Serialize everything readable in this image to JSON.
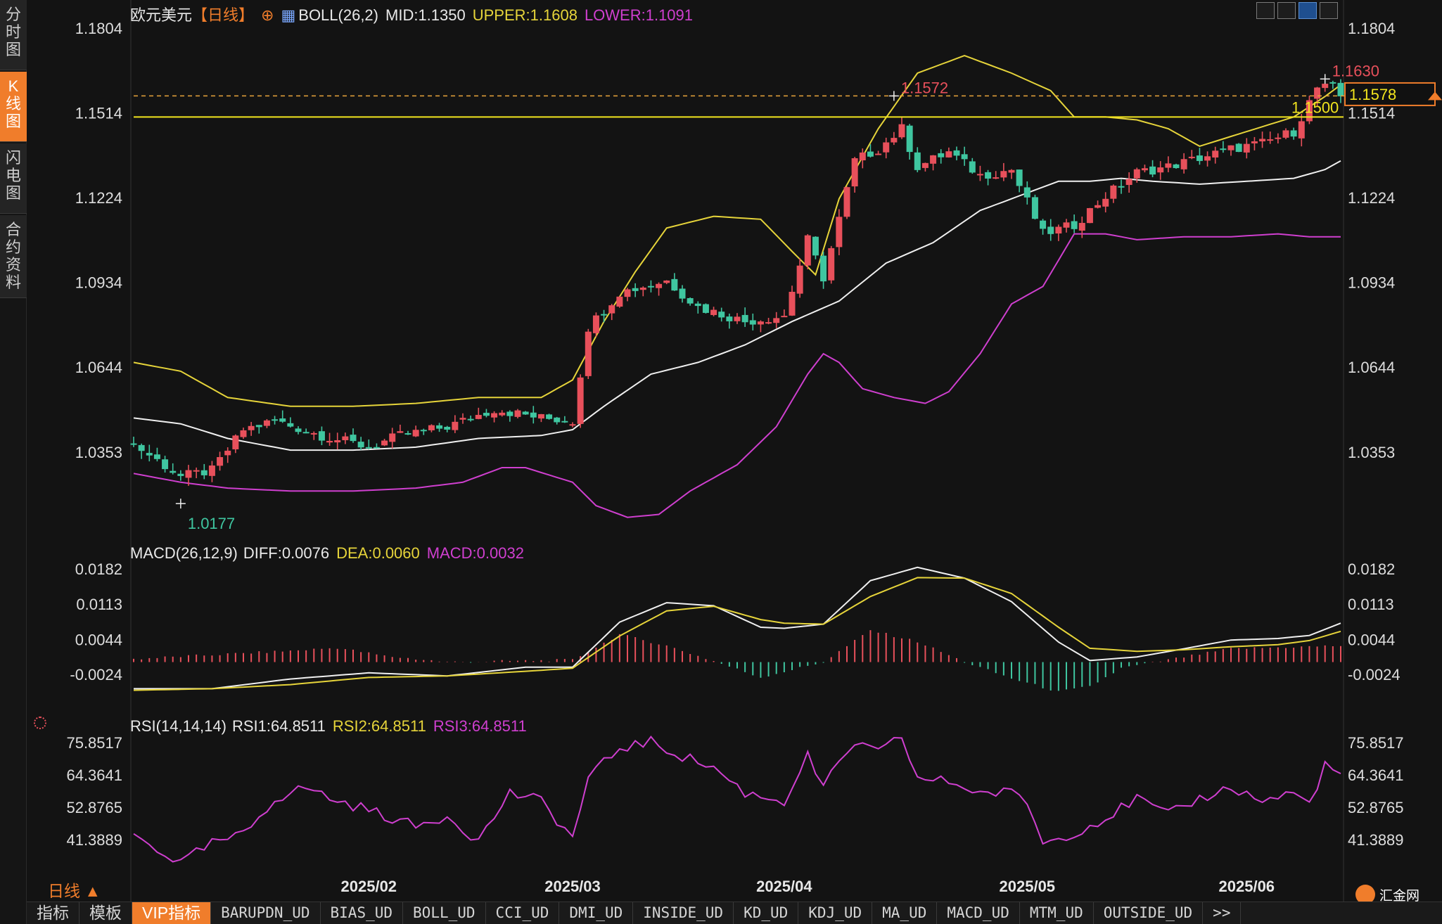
{
  "side_tabs": [
    {
      "label": "分\n时\n图",
      "active": false
    },
    {
      "label": "K\n线\n图",
      "active": true
    },
    {
      "label": "闪\n电\n图",
      "active": false
    },
    {
      "label": "合\n约\n资\n料",
      "active": false
    }
  ],
  "header": {
    "symbol": "欧元美元",
    "period_tag": "【日线】",
    "boll": "BOLL(26,2)",
    "mid": "MID:1.1350",
    "upper": "UPPER:1.1608",
    "lower": "LOWER:1.1091"
  },
  "macd_header": {
    "name": "MACD(26,12,9)",
    "diff": "DIFF:0.0076",
    "dea": "DEA:0.0060",
    "macd": "MACD:0.0032"
  },
  "rsi_header": {
    "name": "RSI(14,14,14)",
    "rsi1": "RSI1:64.8511",
    "rsi2": "RSI2:64.8511",
    "rsi3": "RSI3:64.8511"
  },
  "period_label": "日线 ▲",
  "logo_text": "汇金网",
  "bottom_tabs": [
    "指标",
    "模板",
    "VIP指标",
    "BARUPDN_UD",
    "BIAS_UD",
    "BOLL_UD",
    "CCI_UD",
    "DMI_UD",
    "INSIDE_UD",
    "KD_UD",
    "KDJ_UD",
    "MA_UD",
    "MACD_UD",
    "MTM_UD",
    "OUTSIDE_UD",
    ">>"
  ],
  "colors": {
    "up": "#e8505b",
    "down": "#3fc6a0",
    "upper": "#e6d43a",
    "mid": "#f0f0f0",
    "lower": "#cf3fcf",
    "price_line": "#f2e41e",
    "dashed": "#e9a43a"
  },
  "chart_data": [
    {
      "type": "candlestick",
      "title": "欧元美元 日线",
      "y_ticks": [
        "1.1804",
        "1.1514",
        "1.1224",
        "1.0934",
        "1.0644",
        "1.0353"
      ],
      "ylim": [
        1.008,
        1.193
      ],
      "x_tick_labels": [
        "2025/02",
        "2025/03",
        "2025/04",
        "2025/05",
        "2025/06"
      ],
      "x_tick_index": [
        30,
        56,
        83,
        114,
        142
      ],
      "annotations": [
        {
          "text": "1.0177",
          "index": 6,
          "value": 1.0177,
          "kind": "low"
        },
        {
          "text": "1.1572",
          "index": 97,
          "value": 1.1572,
          "kind": "high"
        },
        {
          "text": "1.1630",
          "index": 152,
          "value": 1.163,
          "kind": "high"
        }
      ],
      "horizontal_line": {
        "value": 1.15,
        "label": "1.1500"
      },
      "dashed_line": {
        "value": 1.1572
      },
      "current_price": {
        "value": 1.1578,
        "label": "1.1578"
      },
      "close_path": [
        [
          0,
          1.038
        ],
        [
          6,
          1.027
        ],
        [
          10,
          1.029
        ],
        [
          14,
          1.043
        ],
        [
          18,
          1.046
        ],
        [
          24,
          1.041
        ],
        [
          30,
          1.037
        ],
        [
          34,
          1.041
        ],
        [
          40,
          1.044
        ],
        [
          46,
          1.05
        ],
        [
          52,
          1.047
        ],
        [
          56,
          1.046
        ],
        [
          58,
          1.078
        ],
        [
          62,
          1.09
        ],
        [
          68,
          1.094
        ],
        [
          72,
          1.085
        ],
        [
          78,
          1.08
        ],
        [
          83,
          1.082
        ],
        [
          86,
          1.108
        ],
        [
          88,
          1.095
        ],
        [
          92,
          1.135
        ],
        [
          95,
          1.139
        ],
        [
          98,
          1.146
        ],
        [
          100,
          1.133
        ],
        [
          104,
          1.138
        ],
        [
          108,
          1.13
        ],
        [
          112,
          1.132
        ],
        [
          116,
          1.11
        ],
        [
          120,
          1.113
        ],
        [
          124,
          1.123
        ],
        [
          128,
          1.131
        ],
        [
          132,
          1.133
        ],
        [
          136,
          1.136
        ],
        [
          140,
          1.139
        ],
        [
          144,
          1.141
        ],
        [
          148,
          1.145
        ],
        [
          151,
          1.16
        ],
        [
          153,
          1.16
        ],
        [
          154,
          1.157
        ]
      ],
      "boll_upper": [
        [
          0,
          1.066
        ],
        [
          6,
          1.063
        ],
        [
          12,
          1.054
        ],
        [
          20,
          1.051
        ],
        [
          28,
          1.051
        ],
        [
          36,
          1.052
        ],
        [
          44,
          1.054
        ],
        [
          52,
          1.054
        ],
        [
          56,
          1.06
        ],
        [
          60,
          1.08
        ],
        [
          64,
          1.097
        ],
        [
          68,
          1.112
        ],
        [
          74,
          1.116
        ],
        [
          80,
          1.115
        ],
        [
          84,
          1.104
        ],
        [
          87,
          1.096
        ],
        [
          90,
          1.122
        ],
        [
          95,
          1.146
        ],
        [
          100,
          1.165
        ],
        [
          106,
          1.171
        ],
        [
          112,
          1.165
        ],
        [
          117,
          1.159
        ],
        [
          120,
          1.15
        ],
        [
          124,
          1.15
        ],
        [
          128,
          1.149
        ],
        [
          132,
          1.146
        ],
        [
          136,
          1.14
        ],
        [
          142,
          1.145
        ],
        [
          148,
          1.15
        ],
        [
          152,
          1.157
        ],
        [
          154,
          1.161
        ]
      ],
      "boll_mid": [
        [
          0,
          1.047
        ],
        [
          6,
          1.045
        ],
        [
          12,
          1.04
        ],
        [
          20,
          1.036
        ],
        [
          28,
          1.036
        ],
        [
          36,
          1.037
        ],
        [
          44,
          1.04
        ],
        [
          52,
          1.041
        ],
        [
          56,
          1.043
        ],
        [
          60,
          1.051
        ],
        [
          66,
          1.062
        ],
        [
          72,
          1.066
        ],
        [
          78,
          1.072
        ],
        [
          84,
          1.08
        ],
        [
          90,
          1.087
        ],
        [
          96,
          1.1
        ],
        [
          102,
          1.107
        ],
        [
          108,
          1.118
        ],
        [
          114,
          1.124
        ],
        [
          118,
          1.128
        ],
        [
          122,
          1.128
        ],
        [
          126,
          1.129
        ],
        [
          130,
          1.128
        ],
        [
          136,
          1.127
        ],
        [
          142,
          1.128
        ],
        [
          148,
          1.129
        ],
        [
          152,
          1.132
        ],
        [
          154,
          1.135
        ]
      ],
      "boll_lower": [
        [
          0,
          1.028
        ],
        [
          6,
          1.025
        ],
        [
          12,
          1.023
        ],
        [
          20,
          1.022
        ],
        [
          28,
          1.022
        ],
        [
          36,
          1.023
        ],
        [
          42,
          1.025
        ],
        [
          47,
          1.03
        ],
        [
          50,
          1.03
        ],
        [
          56,
          1.025
        ],
        [
          59,
          1.017
        ],
        [
          63,
          1.013
        ],
        [
          67,
          1.014
        ],
        [
          71,
          1.022
        ],
        [
          77,
          1.031
        ],
        [
          82,
          1.044
        ],
        [
          86,
          1.062
        ],
        [
          88,
          1.069
        ],
        [
          90,
          1.066
        ],
        [
          93,
          1.057
        ],
        [
          97,
          1.054
        ],
        [
          101,
          1.052
        ],
        [
          104,
          1.056
        ],
        [
          108,
          1.069
        ],
        [
          112,
          1.086
        ],
        [
          116,
          1.092
        ],
        [
          120,
          1.11
        ],
        [
          124,
          1.11
        ],
        [
          128,
          1.108
        ],
        [
          134,
          1.109
        ],
        [
          140,
          1.109
        ],
        [
          146,
          1.11
        ],
        [
          150,
          1.109
        ],
        [
          154,
          1.109
        ]
      ]
    },
    {
      "type": "line",
      "title": "MACD(26,12,9)",
      "y_ticks": [
        "0.0182",
        "0.0113",
        "0.0044",
        "-0.0024"
      ],
      "ylim": [
        -0.0078,
        0.0208
      ],
      "series": [
        {
          "name": "DIFF",
          "color": "#f0f0f0",
          "points": [
            [
              0,
              -0.0052
            ],
            [
              10,
              -0.0052
            ],
            [
              20,
              -0.0033
            ],
            [
              30,
              -0.0021
            ],
            [
              40,
              -0.0027
            ],
            [
              50,
              -0.001
            ],
            [
              56,
              -0.001
            ],
            [
              62,
              0.0078
            ],
            [
              68,
              0.0116
            ],
            [
              74,
              0.011
            ],
            [
              80,
              0.0068
            ],
            [
              83,
              0.0066
            ],
            [
              88,
              0.0074
            ],
            [
              94,
              0.0159
            ],
            [
              100,
              0.0185
            ],
            [
              106,
              0.0164
            ],
            [
              112,
              0.0118
            ],
            [
              118,
              0.0039
            ],
            [
              122,
              0.0003
            ],
            [
              128,
              0.001
            ],
            [
              134,
              0.0026
            ],
            [
              140,
              0.0043
            ],
            [
              146,
              0.0046
            ],
            [
              150,
              0.0052
            ],
            [
              154,
              0.0076
            ]
          ]
        },
        {
          "name": "DEA",
          "color": "#e6d43a",
          "points": [
            [
              0,
              -0.0055
            ],
            [
              10,
              -0.0052
            ],
            [
              20,
              -0.0044
            ],
            [
              30,
              -0.003
            ],
            [
              40,
              -0.0027
            ],
            [
              50,
              -0.0018
            ],
            [
              56,
              -0.0012
            ],
            [
              62,
              0.0051
            ],
            [
              68,
              0.01
            ],
            [
              74,
              0.0109
            ],
            [
              80,
              0.0083
            ],
            [
              83,
              0.0076
            ],
            [
              88,
              0.0074
            ],
            [
              94,
              0.0128
            ],
            [
              100,
              0.0165
            ],
            [
              106,
              0.0164
            ],
            [
              112,
              0.0134
            ],
            [
              118,
              0.0068
            ],
            [
              122,
              0.0027
            ],
            [
              128,
              0.0021
            ],
            [
              134,
              0.0024
            ],
            [
              140,
              0.003
            ],
            [
              146,
              0.0034
            ],
            [
              150,
              0.0042
            ],
            [
              154,
              0.006
            ]
          ]
        },
        {
          "name": "MACD",
          "color": "#cf3fcf",
          "points": [
            [
              0,
              0.0006
            ],
            [
              20,
              0.0022
            ],
            [
              26,
              0.0028
            ],
            [
              32,
              0.0012
            ],
            [
              40,
              0.0
            ],
            [
              56,
              0.0004
            ],
            [
              62,
              0.0054
            ],
            [
              68,
              0.0032
            ],
            [
              74,
              0.0002
            ],
            [
              80,
              -0.003
            ],
            [
              88,
              0.0
            ],
            [
              94,
              0.0062
            ],
            [
              100,
              0.004
            ],
            [
              106,
              0.0
            ],
            [
              112,
              -0.0032
            ],
            [
              118,
              -0.0058
            ],
            [
              122,
              -0.0048
            ],
            [
              126,
              -0.0012
            ],
            [
              140,
              0.0026
            ],
            [
              154,
              0.0032
            ]
          ]
        }
      ]
    },
    {
      "type": "line",
      "title": "RSI(14,14,14)",
      "y_ticks": [
        "75.8517",
        "64.3641",
        "52.8765",
        "41.3889"
      ],
      "ylim": [
        31,
        84
      ],
      "series": [
        {
          "name": "RSI",
          "color": "#cf3fcf",
          "points": [
            [
              0,
              43
            ],
            [
              6,
              33
            ],
            [
              10,
              40
            ],
            [
              14,
              43
            ],
            [
              18,
              56
            ],
            [
              22,
              60
            ],
            [
              26,
              55
            ],
            [
              30,
              52
            ],
            [
              36,
              46
            ],
            [
              40,
              50
            ],
            [
              44,
              41
            ],
            [
              48,
              58
            ],
            [
              52,
              55
            ],
            [
              56,
              42
            ],
            [
              58,
              63
            ],
            [
              62,
              74
            ],
            [
              66,
              76
            ],
            [
              70,
              71
            ],
            [
              74,
              67
            ],
            [
              78,
              58
            ],
            [
              83,
              55
            ],
            [
              86,
              71
            ],
            [
              88,
              60
            ],
            [
              92,
              76
            ],
            [
              95,
              72
            ],
            [
              98,
              78
            ],
            [
              100,
              63
            ],
            [
              104,
              62
            ],
            [
              108,
              58
            ],
            [
              112,
              58
            ],
            [
              114,
              55
            ],
            [
              116,
              40
            ],
            [
              120,
              44
            ],
            [
              124,
              49
            ],
            [
              128,
              56
            ],
            [
              132,
              50
            ],
            [
              136,
              56
            ],
            [
              140,
              60
            ],
            [
              144,
              55
            ],
            [
              148,
              58
            ],
            [
              150,
              54
            ],
            [
              152,
              68
            ],
            [
              154,
              64.85
            ]
          ]
        }
      ]
    }
  ]
}
